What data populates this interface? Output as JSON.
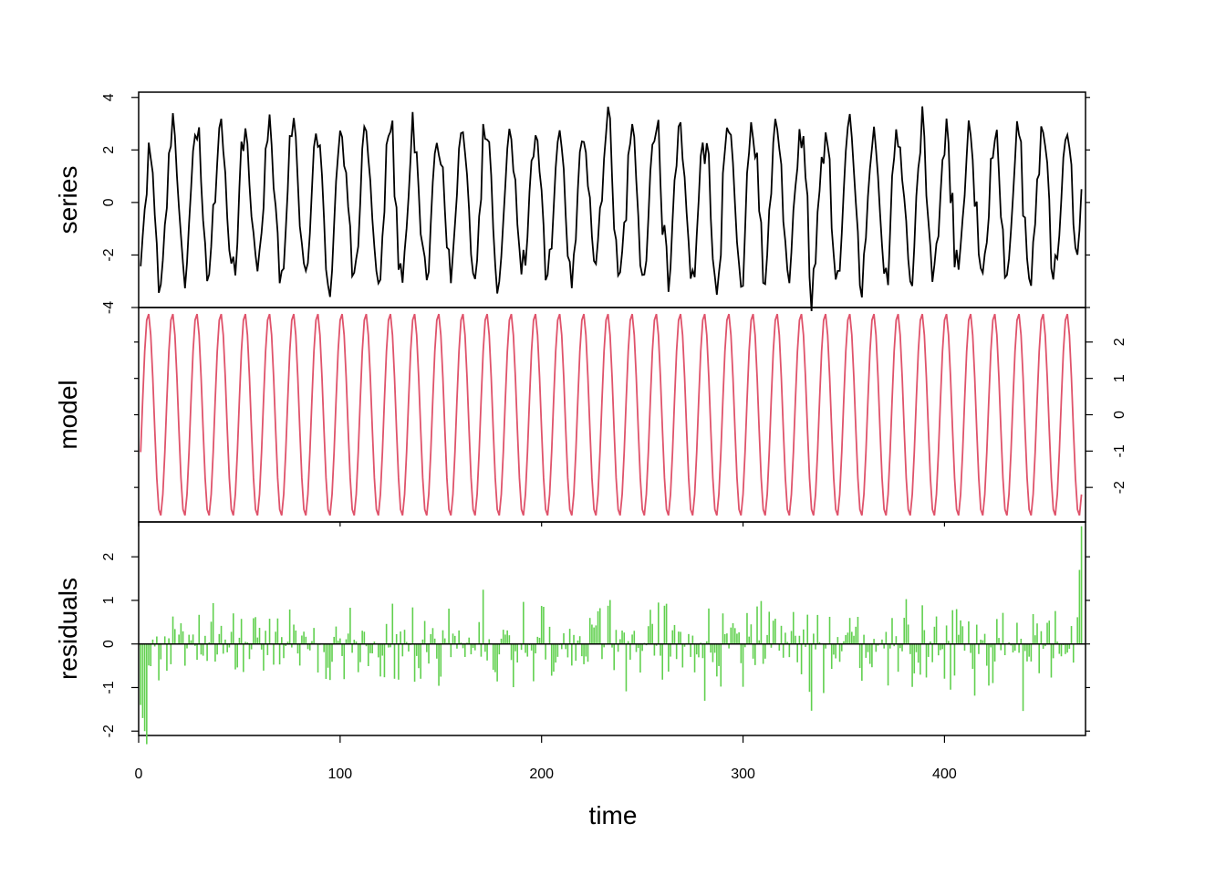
{
  "chart_data": {
    "type": "line",
    "xlabel": "time",
    "xlim": [
      0,
      470
    ],
    "x_ticks": [
      0,
      100,
      200,
      300,
      400
    ],
    "panels": [
      {
        "id": "series",
        "label": "series",
        "type": "line",
        "color": "#000000",
        "axis_side": "left",
        "ylim": [
          -4,
          4.2
        ],
        "yticks": [
          -4,
          -2,
          0,
          2,
          4
        ],
        "model": {
          "amplitude": 3.0,
          "period": 12.0,
          "phase": -0.9,
          "noise_sd": 0.45
        },
        "approx_extrema": {
          "max": 3.9,
          "min": -3.8
        }
      },
      {
        "id": "model",
        "label": "model",
        "type": "line",
        "color": "#DF536B",
        "axis_side": "right",
        "ylim": [
          -2.95,
          2.95
        ],
        "yticks": [
          -2,
          -1,
          0,
          1,
          2
        ],
        "model": {
          "amplitude": 2.8,
          "period": 12.0,
          "phase": -0.9
        },
        "approx_extrema": {
          "max": 2.8,
          "min": -2.8
        }
      },
      {
        "id": "residuals",
        "label": "residuals",
        "type": "bar",
        "color": "#61D04F",
        "axis_side": "left",
        "ylim": [
          -2.1,
          2.8
        ],
        "yticks": [
          -2,
          -1,
          0,
          1,
          2
        ],
        "baseline": 0,
        "model": {
          "noise_sd": 0.45
        },
        "approx_extrema": {
          "max": 2.7,
          "min": -2.0
        }
      }
    ]
  }
}
